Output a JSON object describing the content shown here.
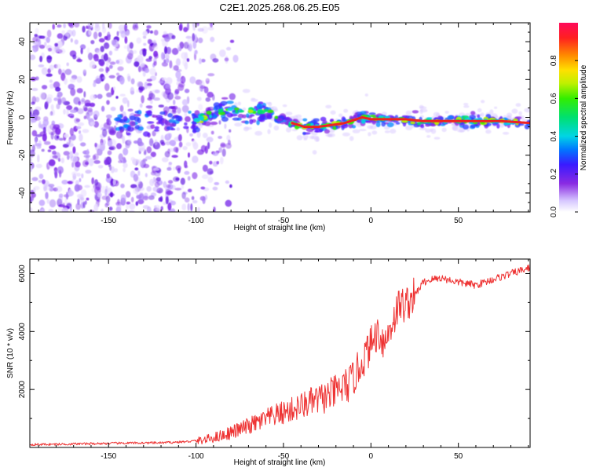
{
  "title": "C2E1.2025.268.06.25.E05",
  "chart_data": [
    {
      "type": "heatmap",
      "name": "spectrogram",
      "xlabel": "Height of straight line (km)",
      "ylabel": "Frequency (Hz)",
      "xlim": [
        -195,
        91
      ],
      "ylim": [
        -50,
        50
      ],
      "xticks": [
        "-150",
        "-100",
        "-50",
        "0",
        "50"
      ],
      "xtick_values": [
        -150,
        -100,
        -50,
        0,
        50
      ],
      "yticks": [
        "40",
        "20",
        "0",
        "-20",
        "-40"
      ],
      "ytick_values": [
        40,
        20,
        0,
        -20,
        -40
      ],
      "colorbar": {
        "label": "Normalized spectral amplitude",
        "range": [
          0.0,
          1.0
        ],
        "ticks": [
          "0.0",
          "0.2",
          "0.4",
          "0.6",
          "0.8"
        ],
        "tick_values": [
          0.0,
          0.2,
          0.4,
          0.6,
          0.8
        ]
      },
      "ridge": {
        "x": [
          -143,
          -130,
          -115,
          -100,
          -90,
          -80,
          -72,
          -65,
          -55,
          -45,
          -38,
          -30,
          -22,
          -15,
          -5,
          0,
          10,
          20,
          30,
          45,
          60,
          75,
          91
        ],
        "y": [
          -4,
          -3,
          -3,
          -2,
          2,
          3,
          3,
          4,
          1,
          -3,
          -5,
          -5,
          -4,
          -3,
          0,
          -1,
          -1,
          -1,
          -2,
          -2,
          -2,
          -2,
          -3
        ]
      }
    },
    {
      "type": "line",
      "name": "snr",
      "xlabel": "Height of straight line (km)",
      "ylabel": "SNR (10 * v/v)",
      "xlim": [
        -195,
        91
      ],
      "ylim": [
        0,
        6500
      ],
      "xticks": [
        "-150",
        "-100",
        "-50",
        "0",
        "50"
      ],
      "xtick_values": [
        -150,
        -100,
        -50,
        0,
        50
      ],
      "yticks": [
        "6000",
        "4000",
        "2000"
      ],
      "ytick_values": [
        6000,
        4000,
        2000
      ],
      "color": "#ee3333",
      "series": [
        {
          "name": "SNR",
          "x": [
            -195,
            -180,
            -160,
            -140,
            -120,
            -105,
            -95,
            -85,
            -75,
            -65,
            -55,
            -45,
            -35,
            -25,
            -18,
            -12,
            -8,
            -3,
            0,
            4,
            8,
            12,
            16,
            20,
            25,
            30,
            35,
            40,
            50,
            60,
            70,
            80,
            91
          ],
          "y": [
            100,
            110,
            130,
            150,
            160,
            200,
            260,
            420,
            620,
            850,
            1100,
            1300,
            1550,
            1750,
            2000,
            2200,
            2600,
            3200,
            3550,
            4000,
            3600,
            4300,
            4900,
            4950,
            5250,
            5700,
            5800,
            5850,
            5700,
            5600,
            5800,
            6000,
            6200
          ]
        }
      ]
    }
  ]
}
